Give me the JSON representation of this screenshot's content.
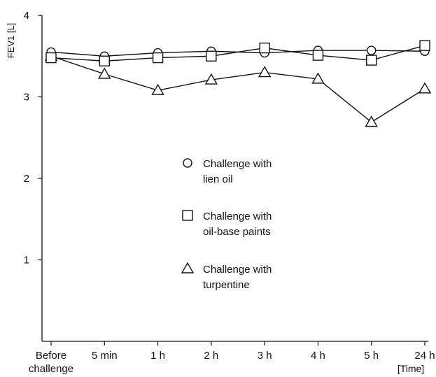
{
  "chart_data": {
    "type": "line",
    "ylabel": "FEV1 [L]",
    "xlabel": "[Time]",
    "ylim": [
      0,
      4
    ],
    "yticks": [
      "1",
      "2",
      "3",
      "4"
    ],
    "categories": [
      [
        "Before",
        "challenge"
      ],
      [
        "5 min"
      ],
      [
        "1 h"
      ],
      [
        "2 h"
      ],
      [
        "3 h"
      ],
      [
        "4 h"
      ],
      [
        "5 h"
      ],
      [
        "24 h"
      ]
    ],
    "series": [
      {
        "name": "Challenge with lien oil",
        "legend_lines": [
          "Challenge with",
          "lien oil"
        ],
        "marker": "circle",
        "values": [
          3.55,
          3.5,
          3.54,
          3.56,
          3.54,
          3.57,
          3.57,
          3.56
        ]
      },
      {
        "name": "Challenge with oil-base paints",
        "legend_lines": [
          "Challenge with",
          "oil-base paints"
        ],
        "marker": "square",
        "values": [
          3.48,
          3.44,
          3.48,
          3.5,
          3.6,
          3.51,
          3.45,
          3.63
        ]
      },
      {
        "name": "Challenge with turpentine",
        "legend_lines": [
          "Challenge with",
          "turpentine"
        ],
        "marker": "triangle",
        "values": [
          3.5,
          3.28,
          3.08,
          3.21,
          3.3,
          3.22,
          2.69,
          3.1
        ]
      }
    ],
    "grid": false,
    "legend_position": "center"
  }
}
